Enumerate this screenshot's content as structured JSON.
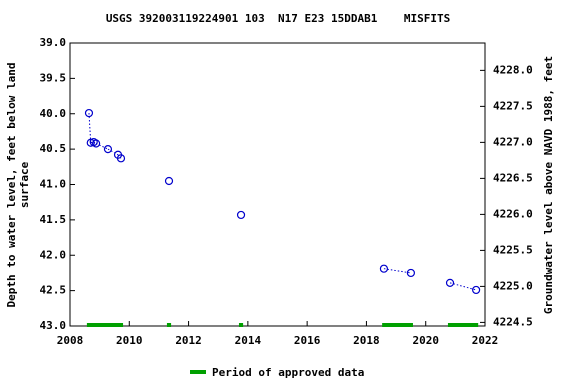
{
  "chart_data": {
    "type": "scatter",
    "title": "USGS 392003119224901 103  N17 E23 15DDAB1    MISFITS",
    "ylabel": [
      "Depth to water level, feet below land",
      "surface"
    ],
    "y2label": "Groundwater level above NAVD 1988, feet",
    "x": [
      2008.64,
      2008.7,
      2008.8,
      2008.88,
      2009.28,
      2009.62,
      2009.72,
      2011.34,
      2013.77,
      2018.59,
      2019.5,
      2020.82,
      2021.7
    ],
    "values": [
      39.99,
      40.41,
      40.4,
      40.42,
      40.5,
      40.58,
      40.63,
      40.95,
      41.43,
      42.19,
      42.25,
      42.39,
      42.49
    ],
    "color": "#0000cc",
    "xlim": [
      2008,
      2022
    ],
    "xticks": [
      2008,
      2010,
      2012,
      2014,
      2016,
      2018,
      2020,
      2022
    ],
    "ylim": [
      43.0,
      39.0
    ],
    "yticks": [
      {
        "value": 39.0,
        "label": "39.0"
      },
      39.5,
      {
        "value": 40.0,
        "label": "40.0"
      },
      40.5,
      {
        "value": 41.0,
        "label": "41.0"
      },
      41.5,
      {
        "value": 42.0,
        "label": "42.0"
      },
      42.5,
      {
        "value": 43.0,
        "label": "43.0"
      }
    ],
    "y2lim": [
      4224.45,
      4228.38
    ],
    "y2ticks": [
      {
        "value": 4228.0,
        "label": "4228.0"
      },
      4227.5,
      {
        "value": 4227.0,
        "label": "4227.0"
      },
      4226.5,
      {
        "value": 4226.0,
        "label": "4226.0"
      },
      4225.5,
      {
        "value": 4225.0,
        "label": "4225.0"
      },
      4224.5
    ],
    "approved_periods": {
      "label": "Period of approved data",
      "color": "#00a000",
      "ranges": [
        [
          2008.57,
          2009.79
        ],
        [
          2011.27,
          2011.41
        ],
        [
          2013.7,
          2013.84
        ],
        [
          2018.53,
          2019.57
        ],
        [
          2020.75,
          2021.77
        ]
      ]
    }
  }
}
